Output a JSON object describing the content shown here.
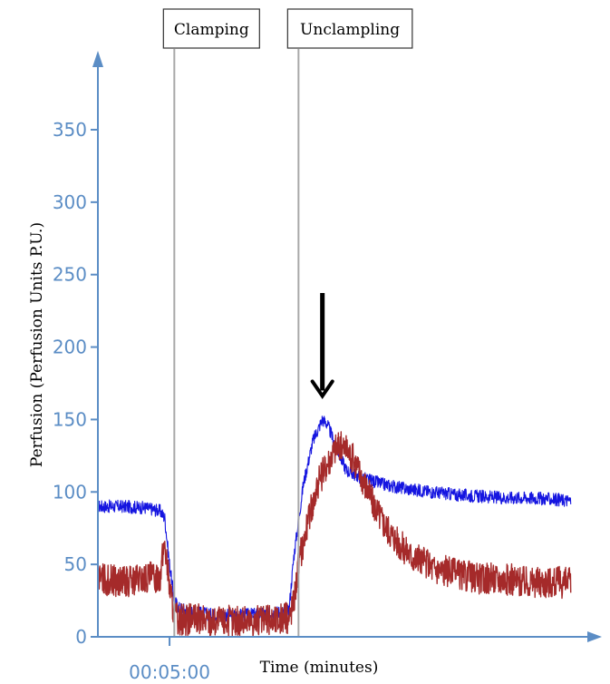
{
  "chart_data": {
    "type": "line",
    "xlabel": "Time (minutes)",
    "ylabel": "Perfusion (Perfusion Units P.U.)",
    "ylim": [
      0,
      400
    ],
    "yticks": [
      0,
      50,
      100,
      150,
      200,
      250,
      300,
      350
    ],
    "xlim": [
      0,
      100
    ],
    "xticks": [
      {
        "value": 15,
        "label": "00:05:00"
      }
    ],
    "annotations": [
      {
        "label": "Clamping",
        "x": 16
      },
      {
        "label": "Unclampling",
        "x": 42
      }
    ],
    "arrow": {
      "x": 47,
      "y": 160
    },
    "series": [
      {
        "color": "#1515e0",
        "x": [
          0,
          5,
          10,
          13,
          14,
          15,
          16,
          17,
          20,
          25,
          30,
          35,
          40,
          41,
          42,
          43,
          45,
          47,
          48,
          50,
          52,
          55,
          58,
          60,
          65,
          70,
          75,
          80,
          85,
          90,
          95,
          99
        ],
        "y": [
          90,
          90,
          89,
          87,
          82,
          50,
          25,
          20,
          17,
          15,
          15,
          16,
          18,
          55,
          80,
          105,
          135,
          150,
          147,
          130,
          115,
          110,
          107,
          105,
          102,
          100,
          98,
          97,
          96,
          96,
          95,
          94
        ]
      },
      {
        "color": "#a52a2a",
        "x": [
          0,
          5,
          10,
          13,
          14,
          15,
          16,
          17,
          20,
          25,
          30,
          35,
          40,
          41,
          42,
          44,
          46,
          48,
          50,
          52,
          54,
          56,
          58,
          60,
          63,
          66,
          70,
          75,
          80,
          85,
          90,
          95,
          99
        ],
        "y": [
          40,
          38,
          40,
          42,
          65,
          35,
          15,
          12,
          12,
          11,
          11,
          11,
          13,
          25,
          50,
          80,
          105,
          120,
          132,
          130,
          120,
          105,
          90,
          78,
          65,
          55,
          48,
          43,
          40,
          40,
          38,
          38,
          37
        ]
      }
    ]
  }
}
